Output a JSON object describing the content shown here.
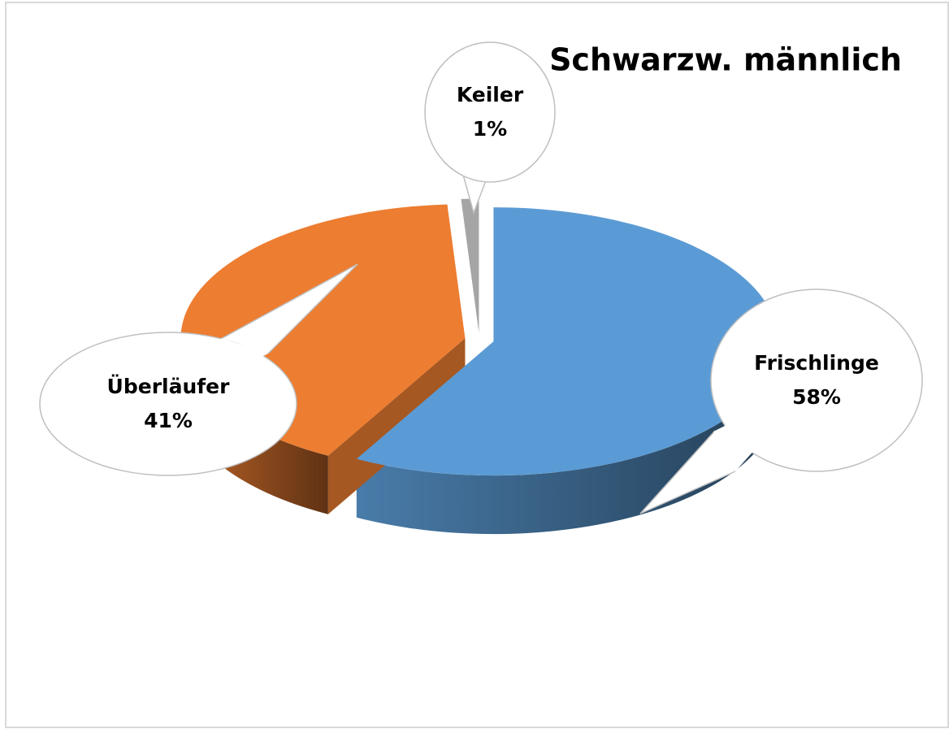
{
  "chart_data": {
    "type": "pie",
    "title": "Schwarzw.  männlich",
    "categories": [
      "Frischlinge",
      "Überläufer",
      "Keiler"
    ],
    "values": [
      58,
      41,
      1
    ],
    "value_labels": [
      "58%",
      "41%",
      "1%"
    ],
    "colors": [
      "#5b9bd5",
      "#ed7d31",
      "#a5a5a5"
    ]
  }
}
